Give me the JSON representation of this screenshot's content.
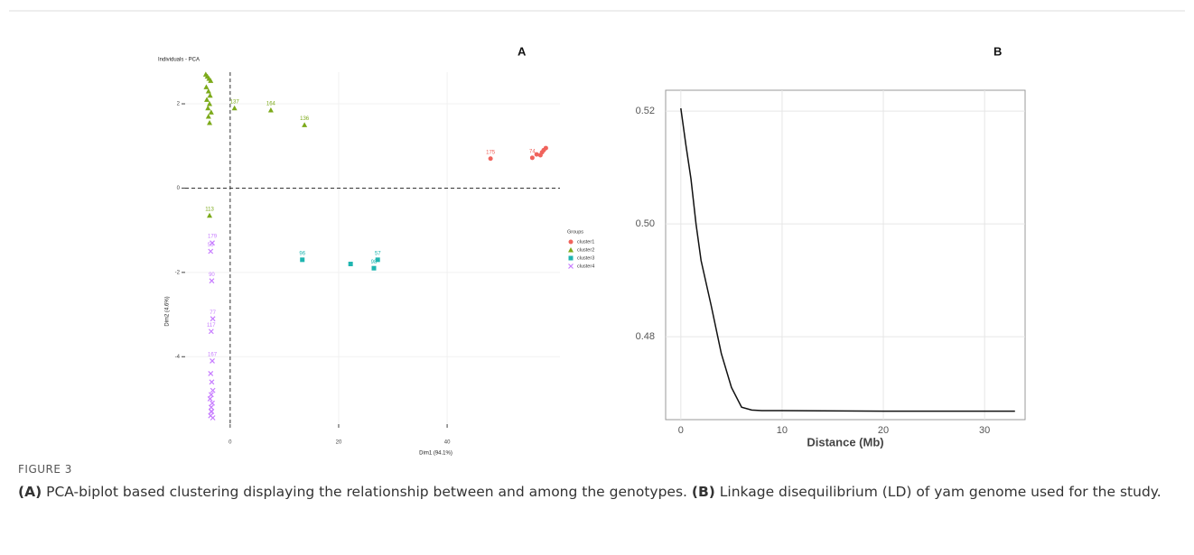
{
  "chart_data": [
    {
      "type": "scatter",
      "panel": "A",
      "title": "Individuals - PCA",
      "x_label": "Dim1 (94.1%)",
      "y_label": "Dim2 (4.6%)",
      "xlim": [
        -8.3,
        60.8
      ],
      "ylim": [
        -5.6,
        2.75
      ],
      "xticks": [
        0,
        20,
        40
      ],
      "yticks": [
        2,
        0,
        -2,
        -4
      ],
      "vline": 0,
      "hline": 0,
      "grid": true,
      "legend_title": "Groups",
      "legend": "right",
      "series": [
        {
          "name": "cluster1",
          "color": "#f0635c",
          "marker": "circle",
          "x": [
            48,
            55.7,
            56.5,
            57.2,
            57.8,
            58.2,
            57.5
          ],
          "values": [
            0.7,
            0.72,
            0.8,
            0.78,
            0.9,
            0.95,
            0.85
          ],
          "labels": [
            "175",
            "74",
            null,
            null,
            null,
            null,
            null
          ]
        },
        {
          "name": "cluster2",
          "color": "#7caa1a",
          "marker": "triangle",
          "x": [
            -4.5,
            -4.2,
            -3.9,
            -3.6,
            -4.4,
            -4.0,
            -3.7,
            -4.3,
            -3.8,
            -4.1,
            -3.5,
            -4.0,
            -3.8,
            0.8,
            7.5,
            13.7,
            -3.8
          ],
          "values": [
            2.7,
            2.65,
            2.6,
            2.55,
            2.4,
            2.3,
            2.2,
            2.1,
            2.0,
            1.9,
            1.8,
            1.7,
            1.55,
            1.9,
            1.85,
            1.5,
            -0.65
          ],
          "labels": [
            null,
            null,
            null,
            null,
            null,
            null,
            null,
            null,
            null,
            null,
            null,
            null,
            null,
            "137",
            "164",
            "136",
            "113"
          ]
        },
        {
          "name": "cluster3",
          "color": "#1fb5b0",
          "marker": "square",
          "x": [
            13.3,
            22.2,
            26.5,
            27.2
          ],
          "values": [
            -1.7,
            -1.8,
            -1.9,
            -1.7
          ],
          "labels": [
            "96",
            null,
            "98",
            "57"
          ]
        },
        {
          "name": "cluster4",
          "color": "#c77cff",
          "marker": "cross",
          "x": [
            -3.3,
            -3.6,
            -3.4,
            -3.2,
            -3.5,
            -3.3,
            -3.6,
            -3.4,
            -3.2,
            -3.5,
            -3.7,
            -3.3,
            -3.5,
            -3.4,
            -3.6,
            -3.2,
            -3.5
          ],
          "values": [
            -1.3,
            -1.5,
            -2.2,
            -3.1,
            -3.4,
            -4.1,
            -4.4,
            -4.6,
            -4.8,
            -4.9,
            -5.0,
            -5.1,
            -5.2,
            -5.3,
            -5.4,
            -5.45,
            -5.3
          ],
          "labels": [
            "179",
            "55",
            "90",
            "77",
            "117",
            "167",
            null,
            null,
            null,
            null,
            null,
            null,
            null,
            null,
            null,
            null,
            null
          ]
        }
      ]
    },
    {
      "type": "line",
      "panel": "B",
      "x_label": "Distance (Mb)",
      "color": "#111111",
      "xlim": [
        -1.5,
        34
      ],
      "ylim": [
        0.4653,
        0.5237
      ],
      "xticks": [
        0,
        10,
        20,
        30
      ],
      "yticks": [
        0.48,
        {
          "value": 0.5,
          "label": "0.50"
        },
        0.52
      ],
      "grid": true,
      "x": [
        0,
        0.5,
        1,
        1.5,
        2,
        3,
        4,
        5,
        6,
        7,
        8,
        10,
        20,
        33
      ],
      "values": [
        0.5205,
        0.514,
        0.508,
        0.5,
        0.4935,
        0.4855,
        0.477,
        0.471,
        0.4675,
        0.467,
        0.4669,
        0.4669,
        0.4668,
        0.4668
      ]
    }
  ],
  "caption": {
    "label": "FIGURE 3",
    "parts": [
      {
        "bold": "(A)",
        "text": " PCA-biplot based clustering displaying the relationship between and among the genotypes. "
      },
      {
        "bold": "(B)",
        "text": " Linkage disequilibrium (LD) of yam genome used for the study."
      }
    ]
  }
}
